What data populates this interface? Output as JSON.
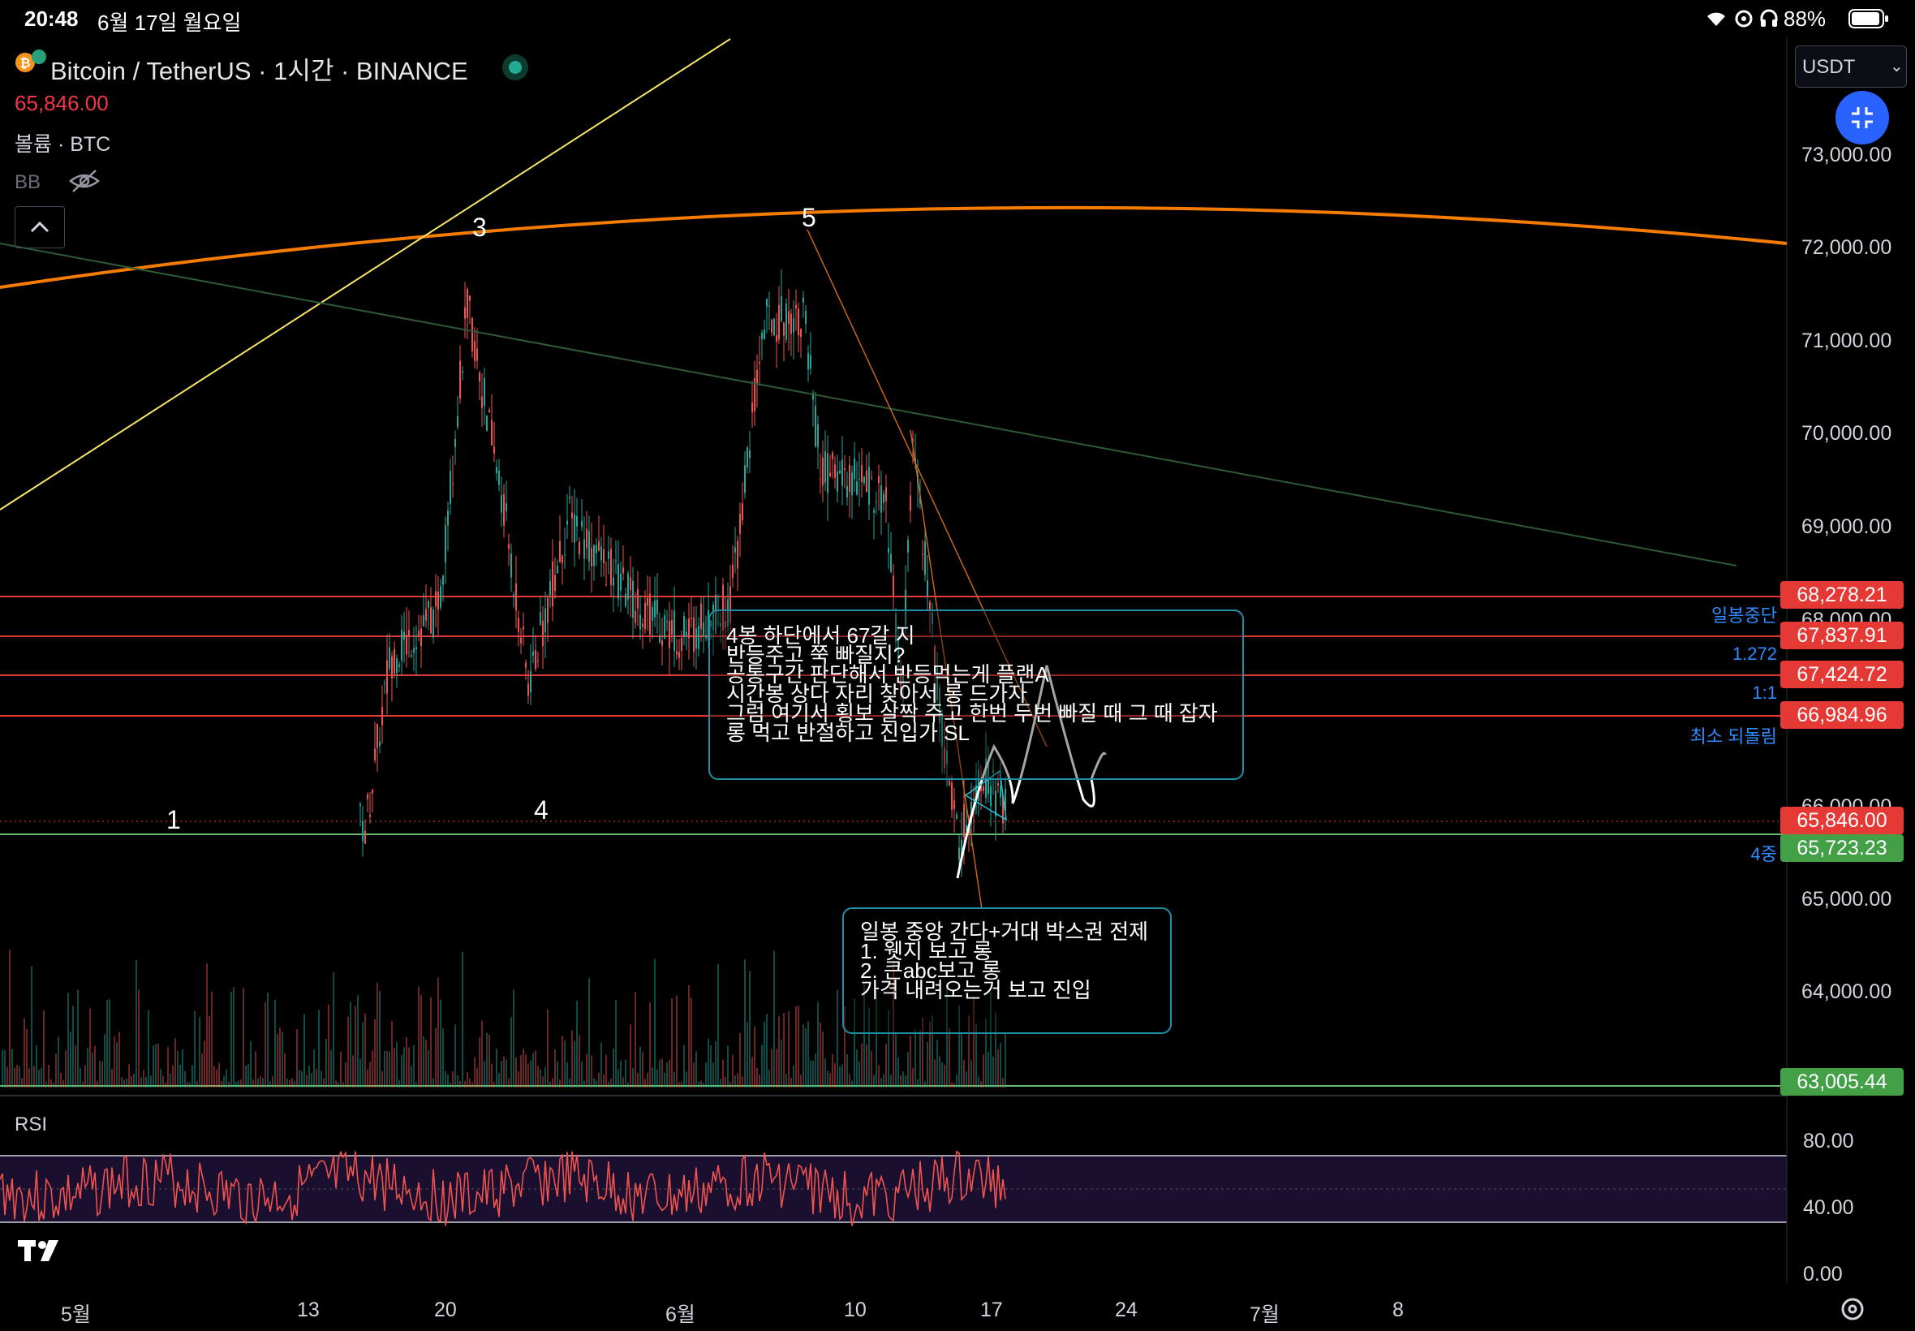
{
  "status_bar": {
    "time": "20:48",
    "date": "6월 17일 월요일",
    "battery": "88%"
  },
  "header": {
    "symbol": "Bitcoin / TetherUS · 1시간 · BINANCE",
    "price": "65,846.00",
    "volume_label": "볼륨 · BTC",
    "bb_label": "BB",
    "currency": "USDT"
  },
  "price_axis": [
    "73,000.00",
    "72,000.00",
    "71,000.00",
    "70,000.00",
    "69,000.00",
    "68,000.00",
    "66,000.00",
    "65,000.00",
    "64,000.00"
  ],
  "price_tags": [
    {
      "value": "68,278.21",
      "color": "#e53935"
    },
    {
      "value": "67,837.91",
      "color": "#e53935"
    },
    {
      "value": "67,424.72",
      "color": "#e53935"
    },
    {
      "value": "66,984.96",
      "color": "#e53935"
    },
    {
      "value": "65,846.00",
      "color": "#e53935"
    },
    {
      "value": "65,723.23",
      "color": "#43a047"
    },
    {
      "value": "63,005.44",
      "color": "#43a047"
    }
  ],
  "level_labels": [
    "일봉중단",
    "1.272",
    "1:1",
    "최소 되돌림",
    "4중"
  ],
  "wave_labels": [
    "1",
    "3",
    "4",
    "5",
    "4"
  ],
  "note_box_1": [
    "4봉 하단에서 67갈 지",
    "반등주고 쭉 빠질지?",
    "공통구간 판단해서 반등먹는게 플랜A",
    "시간봉 상다 자리 찾아서 롱 드가자",
    "그럼 여기서 횡보 살짝 주고 한번 두번 빠질 때 그 때 잡자",
    "롱 먹고 반절하고 진입가 SL"
  ],
  "note_box_2": [
    "일봉 중앙 간다+거대 박스권 전제",
    " 1. 웻지 보고 롱",
    " 2. 큰abc보고 롱",
    "가격 내려오는거 보고 진입"
  ],
  "rsi": {
    "label": "RSI",
    "axis": [
      "80.00",
      "40.00",
      "0.00"
    ]
  },
  "time_axis": [
    "5월",
    "13",
    "20",
    "6월",
    "10",
    "17",
    "24",
    "7월",
    "8"
  ],
  "colors": {
    "up": "#26a69a",
    "down": "#ef5350",
    "orange_curve": "#f57c00",
    "yellow_line": "#f5e663",
    "accent_blue": "#2962ff"
  }
}
